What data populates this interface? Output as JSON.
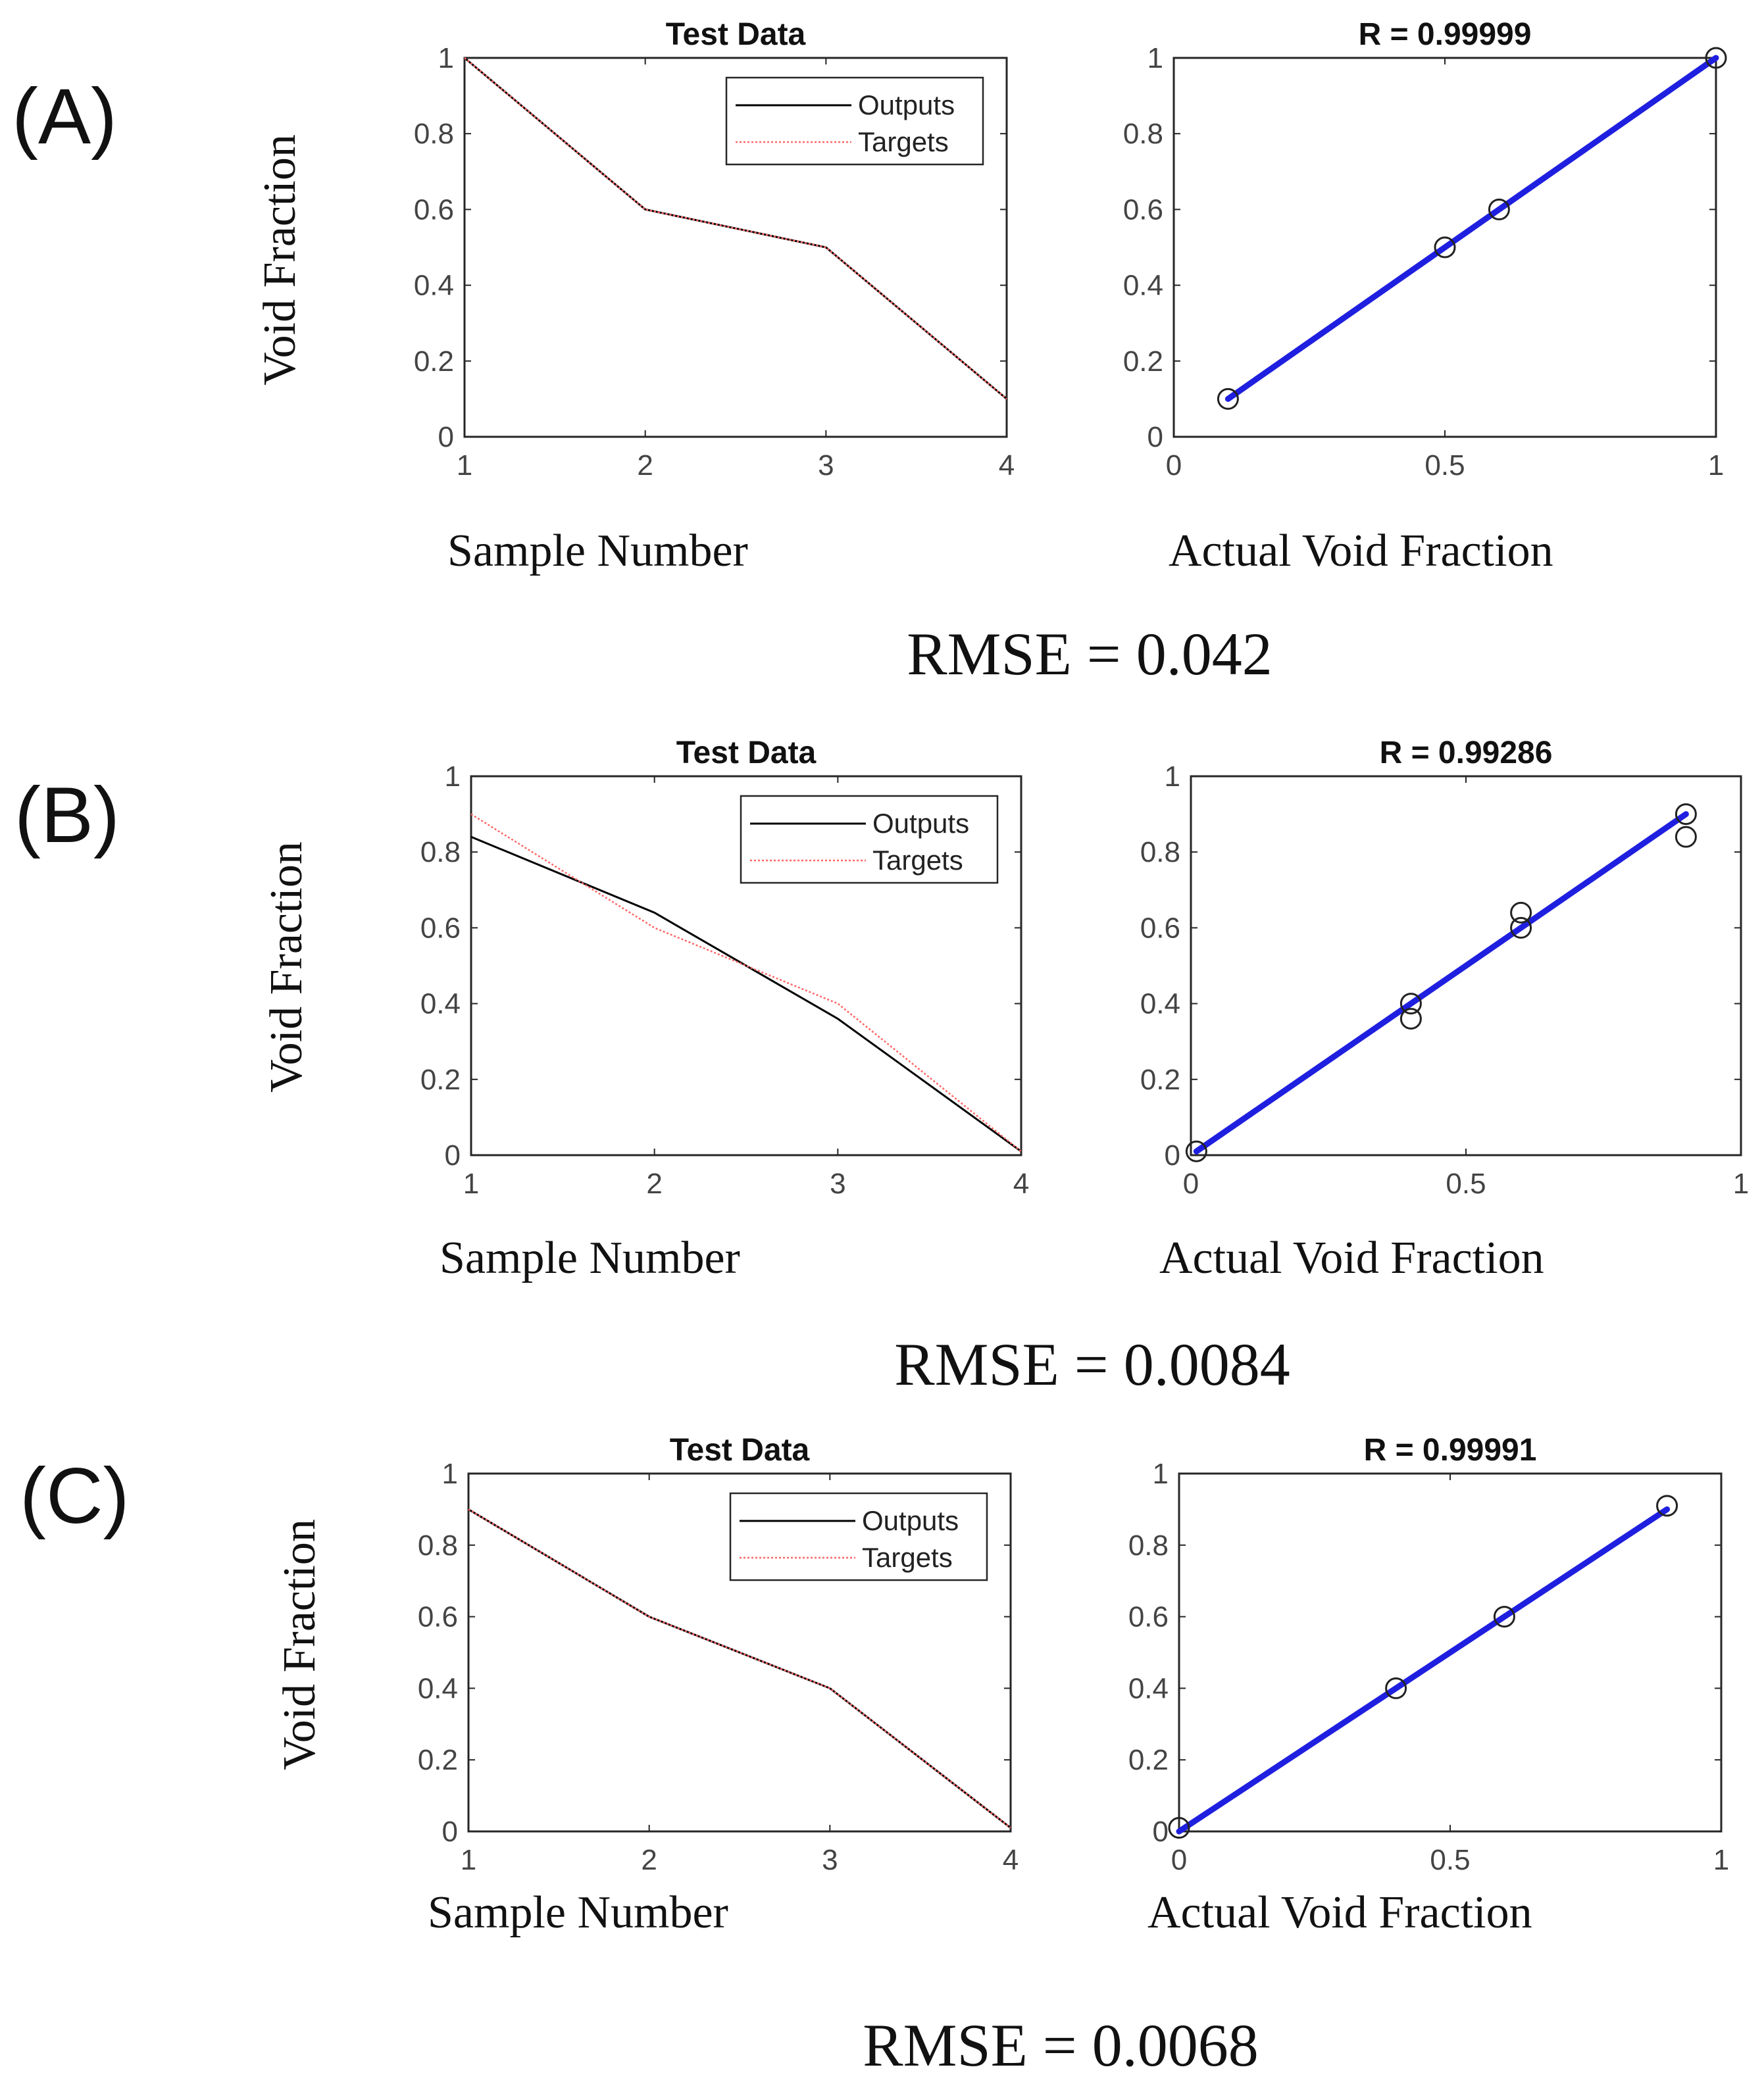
{
  "figure": {
    "y_axis_label": "Void Fraction",
    "left_x_label": "Sample Number",
    "right_x_label": "Actual Void Fraction",
    "legend": [
      "Outputs",
      "Targets"
    ],
    "colors": {
      "outputs": "#000000",
      "targets": "#ff6666",
      "fit": "#1f1fe0",
      "marker": "#222222",
      "axes": "#262626"
    }
  },
  "panels": [
    {
      "label": "(A)",
      "rmse": "RMSE = 0.042"
    },
    {
      "label": "(B)",
      "rmse": "RMSE = 0.0084"
    },
    {
      "label": "(C)",
      "rmse": "RMSE = 0.0068"
    }
  ],
  "chart_data": [
    {
      "panel": "(A)",
      "type": "line",
      "title": "Test Data",
      "xlabel": "Sample Number",
      "ylabel": "Void Fraction",
      "xlim": [
        1,
        4
      ],
      "ylim": [
        0,
        1
      ],
      "xticks": [
        1,
        2,
        3,
        4
      ],
      "xtick_labels": [
        "1",
        "2",
        "3",
        "4"
      ],
      "yticks": [
        0,
        0.2,
        0.4,
        0.6,
        0.8,
        1
      ],
      "ytick_labels": [
        "0",
        "0.2",
        "0.4",
        "0.6",
        "0.8",
        "1"
      ],
      "legend": "top-right",
      "series": [
        {
          "name": "Outputs",
          "x": [
            1,
            2,
            3,
            4
          ],
          "values": [
            1.0,
            0.6,
            0.5,
            0.1
          ]
        },
        {
          "name": "Targets",
          "x": [
            1,
            2,
            3,
            4
          ],
          "values": [
            1.0,
            0.6,
            0.5,
            0.1
          ]
        }
      ]
    },
    {
      "panel": "(A)",
      "type": "scatter",
      "title": "R = 0.99999",
      "xlabel": "Actual Void Fraction",
      "ylabel": "",
      "xlim": [
        0,
        1
      ],
      "ylim": [
        0,
        1
      ],
      "xticks": [
        0,
        0.5,
        1
      ],
      "xtick_labels": [
        "0",
        "0.5",
        "1"
      ],
      "yticks": [
        0,
        0.2,
        0.4,
        0.6,
        0.8,
        1
      ],
      "ytick_labels": [
        "0",
        "0.2",
        "0.4",
        "0.6",
        "0.8",
        "1"
      ],
      "points": {
        "x": [
          0.1,
          0.5,
          0.6,
          1.0
        ],
        "y": [
          0.1,
          0.5,
          0.6,
          1.0
        ]
      },
      "fit": {
        "x": [
          0.1,
          1.0
        ],
        "y": [
          0.1,
          1.0
        ]
      }
    },
    {
      "panel": "(B)",
      "type": "line",
      "title": "Test Data",
      "xlabel": "Sample Number",
      "ylabel": "Void Fraction",
      "xlim": [
        1,
        4
      ],
      "ylim": [
        0,
        1
      ],
      "xticks": [
        1,
        2,
        3,
        4
      ],
      "xtick_labels": [
        "1",
        "2",
        "3",
        "4"
      ],
      "yticks": [
        0,
        0.2,
        0.4,
        0.6,
        0.8,
        1
      ],
      "ytick_labels": [
        "0",
        "0.2",
        "0.4",
        "0.6",
        "0.8",
        "1"
      ],
      "legend": "top-right",
      "series": [
        {
          "name": "Outputs",
          "x": [
            1,
            2,
            3,
            4
          ],
          "values": [
            0.84,
            0.64,
            0.36,
            0.01
          ]
        },
        {
          "name": "Targets",
          "x": [
            1,
            2,
            3,
            4
          ],
          "values": [
            0.9,
            0.6,
            0.4,
            0.01
          ]
        }
      ]
    },
    {
      "panel": "(B)",
      "type": "scatter",
      "title": "R = 0.99286",
      "xlabel": "Actual Void Fraction",
      "ylabel": "",
      "xlim": [
        0,
        1
      ],
      "ylim": [
        0,
        1
      ],
      "xticks": [
        0,
        0.5,
        1
      ],
      "xtick_labels": [
        "0",
        "0.5",
        "1"
      ],
      "yticks": [
        0,
        0.2,
        0.4,
        0.6,
        0.8,
        1
      ],
      "ytick_labels": [
        "0",
        "0.2",
        "0.4",
        "0.6",
        "0.8",
        "1"
      ],
      "points": {
        "x": [
          0.01,
          0.4,
          0.4,
          0.6,
          0.6,
          0.9,
          0.9
        ],
        "y": [
          0.01,
          0.4,
          0.36,
          0.64,
          0.6,
          0.9,
          0.84
        ]
      },
      "fit": {
        "x": [
          0.01,
          0.9
        ],
        "y": [
          0.01,
          0.9
        ]
      }
    },
    {
      "panel": "(C)",
      "type": "line",
      "title": "Test Data",
      "xlabel": "Sample Number",
      "ylabel": "Void Fraction",
      "xlim": [
        1,
        4
      ],
      "ylim": [
        0,
        1
      ],
      "xticks": [
        1,
        2,
        3,
        4
      ],
      "xtick_labels": [
        "1",
        "2",
        "3",
        "4"
      ],
      "yticks": [
        0,
        0.2,
        0.4,
        0.6,
        0.8,
        1
      ],
      "ytick_labels": [
        "0",
        "0.2",
        "0.4",
        "0.6",
        "0.8",
        "1"
      ],
      "legend": "top-right",
      "series": [
        {
          "name": "Outputs",
          "x": [
            1,
            2,
            3,
            4
          ],
          "values": [
            0.9,
            0.6,
            0.4,
            0.01
          ]
        },
        {
          "name": "Targets",
          "x": [
            1,
            2,
            3,
            4
          ],
          "values": [
            0.9,
            0.6,
            0.4,
            0.01
          ]
        }
      ]
    },
    {
      "panel": "(C)",
      "type": "scatter",
      "title": "R = 0.99991",
      "xlabel": "Actual Void Fraction",
      "ylabel": "",
      "xlim": [
        0,
        1
      ],
      "ylim": [
        0,
        1
      ],
      "xticks": [
        0,
        0.5,
        1
      ],
      "xtick_labels": [
        "0",
        "0.5",
        "1"
      ],
      "yticks": [
        0,
        0.2,
        0.4,
        0.6,
        0.8,
        1
      ],
      "ytick_labels": [
        "0",
        "0.2",
        "0.4",
        "0.6",
        "0.8",
        "1"
      ],
      "points": {
        "x": [
          0.0,
          0.4,
          0.6,
          0.9
        ],
        "y": [
          0.01,
          0.4,
          0.6,
          0.91
        ]
      },
      "fit": {
        "x": [
          0.0,
          0.9
        ],
        "y": [
          0.0,
          0.9
        ]
      }
    }
  ]
}
